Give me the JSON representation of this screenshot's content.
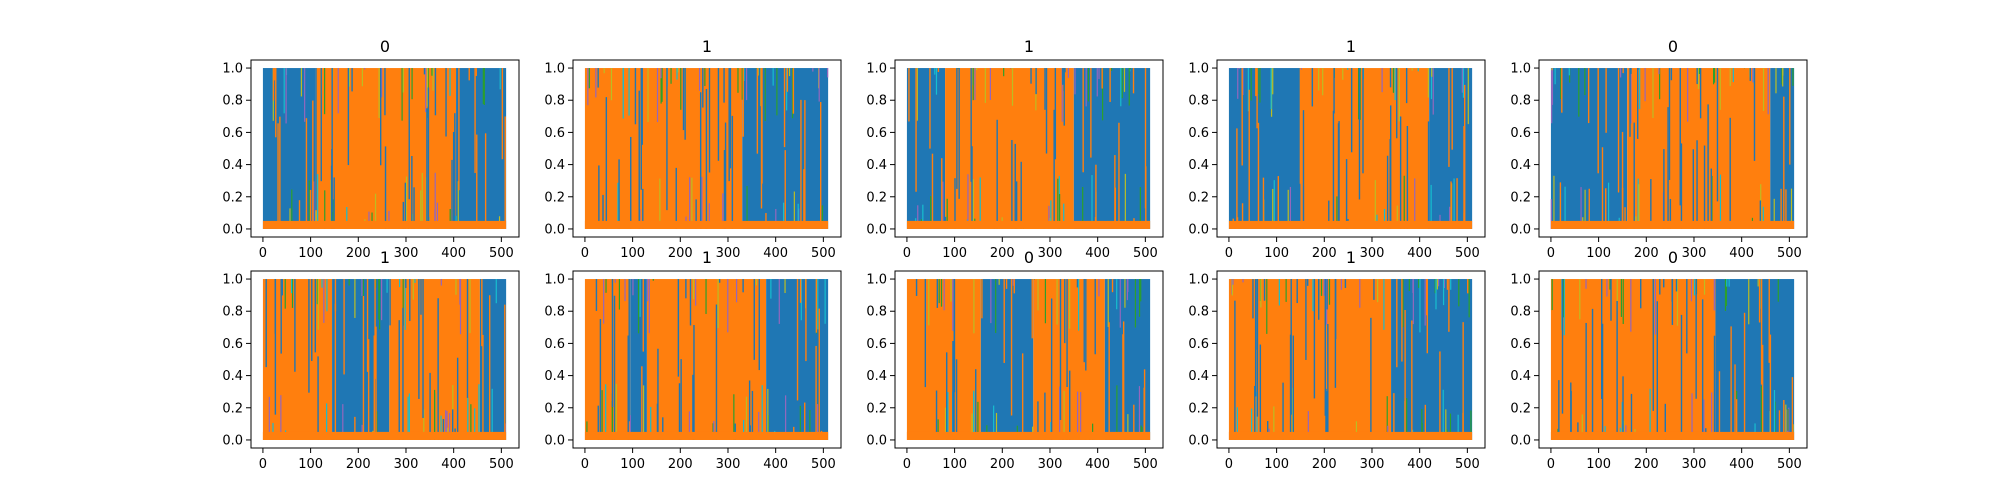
{
  "chart_data": {
    "type": "line",
    "subplots": [
      {
        "title": "0",
        "pattern": [
          [
            "blue",
            0,
            110
          ],
          [
            "orange",
            110,
            405
          ],
          [
            "blue",
            405,
            510
          ]
        ]
      },
      {
        "title": "1",
        "pattern": [
          [
            "orange",
            0,
            330
          ],
          [
            "blue",
            330,
            510
          ]
        ]
      },
      {
        "title": "1",
        "pattern": [
          [
            "blue",
            0,
            80
          ],
          [
            "orange",
            80,
            350
          ],
          [
            "blue",
            350,
            510
          ]
        ]
      },
      {
        "title": "1",
        "pattern": [
          [
            "blue",
            0,
            150
          ],
          [
            "orange",
            150,
            420
          ],
          [
            "blue",
            420,
            510
          ]
        ]
      },
      {
        "title": "0",
        "pattern": [
          [
            "blue",
            0,
            160
          ],
          [
            "orange",
            160,
            460
          ],
          [
            "blue",
            460,
            510
          ]
        ]
      },
      {
        "title": "1",
        "pattern": [
          [
            "orange",
            0,
            145
          ],
          [
            "blue",
            145,
            265
          ],
          [
            "orange",
            265,
            455
          ],
          [
            "blue",
            455,
            510
          ]
        ]
      },
      {
        "title": "1",
        "pattern": [
          [
            "orange",
            0,
            95
          ],
          [
            "blue",
            95,
            130
          ],
          [
            "orange",
            130,
            380
          ],
          [
            "blue",
            380,
            510
          ]
        ]
      },
      {
        "title": "0",
        "pattern": [
          [
            "orange",
            0,
            155
          ],
          [
            "blue",
            155,
            265
          ],
          [
            "orange",
            265,
            415
          ],
          [
            "blue",
            415,
            510
          ]
        ]
      },
      {
        "title": "1",
        "pattern": [
          [
            "orange",
            0,
            340
          ],
          [
            "blue",
            340,
            510
          ]
        ]
      },
      {
        "title": "0",
        "pattern": [
          [
            "orange",
            0,
            345
          ],
          [
            "blue",
            345,
            510
          ]
        ]
      }
    ],
    "x_ticks": [
      0,
      100,
      200,
      300,
      400,
      500
    ],
    "y_ticks": [
      "0.0",
      "0.2",
      "0.4",
      "0.6",
      "0.8",
      "1.0"
    ],
    "xlim": [
      -25,
      537
    ],
    "ylim": [
      -0.05,
      1.05
    ],
    "grid": false,
    "colors": {
      "blue": "#1f77b4",
      "orange": "#ff7f0e",
      "cyan": "#17becf",
      "olive": "#bcbd22",
      "green": "#2ca02c",
      "purple": "#9467bd"
    }
  }
}
